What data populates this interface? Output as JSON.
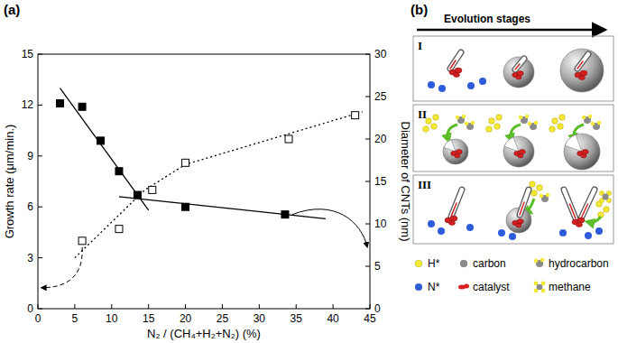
{
  "chart_data": {
    "type": "scatter",
    "label": "(a)",
    "xlabel": "N₂ / (CH₄+H₂+N₂) (%)",
    "ylabel": "Growth rate (μm/min.)",
    "y2label": "Diameter of CNTs (nm)",
    "xlim": [
      0,
      45
    ],
    "xticks": [
      0,
      5,
      10,
      15,
      20,
      25,
      30,
      35,
      40,
      45
    ],
    "ylim": [
      0,
      15
    ],
    "yticks": [
      0,
      3,
      6,
      9,
      12,
      15
    ],
    "y2lim": [
      0,
      30
    ],
    "y2ticks": [
      0,
      5,
      10,
      15,
      20,
      25,
      30
    ],
    "grid": false,
    "series": [
      {
        "type": "scatter",
        "marker": "open-square",
        "color": "#000000",
        "x": [
          6,
          11,
          15.5,
          20,
          34,
          43
        ],
        "values": [
          4.0,
          4.7,
          7.0,
          8.6,
          10.0,
          11.4
        ]
      },
      {
        "type": "scatter",
        "marker": "square",
        "color": "#000000",
        "axis": "y2",
        "x": [
          3,
          6,
          8.5,
          11,
          13.5,
          20,
          33.5
        ],
        "values": [
          24.2,
          23.8,
          19.8,
          16.2,
          13.4,
          12.0,
          11.1
        ]
      },
      {
        "type": "line",
        "line_style": "dotted",
        "color": "#000000",
        "x": [
          5,
          14.5,
          20,
          44
        ],
        "values": [
          3.0,
          7.0,
          8.5,
          11.6
        ]
      },
      {
        "type": "line",
        "line_style": "solid",
        "color": "#000000",
        "axis": "y2",
        "x": [
          3,
          15
        ],
        "values": [
          26.0,
          11.6
        ]
      },
      {
        "type": "line",
        "line_style": "solid",
        "color": "#000000",
        "axis": "y2",
        "x": [
          11,
          39
        ],
        "values": [
          13.2,
          10.6
        ]
      }
    ]
  },
  "diagram": {
    "label": "(b)",
    "header": "Evolution stages",
    "stages": [
      {
        "label": "I"
      },
      {
        "label": "II"
      },
      {
        "label": "III"
      }
    ],
    "legend": [
      {
        "label": "H*",
        "marker": "dot",
        "color": "#f3e934"
      },
      {
        "label": "carbon",
        "marker": "dot",
        "color": "#8a8a8a"
      },
      {
        "label": "hydrocarbon",
        "marker": "hydrocarbon",
        "color": "#8a8a8a"
      },
      {
        "label": "N*",
        "marker": "dot",
        "color": "#2e5bd9"
      },
      {
        "label": "catalyst",
        "marker": "blob",
        "color": "#d42020"
      },
      {
        "label": "methane",
        "marker": "methane",
        "color": "#8a8a8a"
      }
    ]
  }
}
